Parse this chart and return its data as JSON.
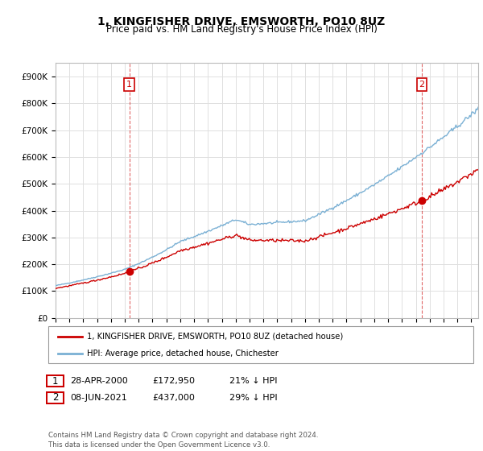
{
  "title": "1, KINGFISHER DRIVE, EMSWORTH, PO10 8UZ",
  "subtitle": "Price paid vs. HM Land Registry's House Price Index (HPI)",
  "ylabel_ticks": [
    "£0",
    "£100K",
    "£200K",
    "£300K",
    "£400K",
    "£500K",
    "£600K",
    "£700K",
    "£800K",
    "£900K"
  ],
  "ytick_values": [
    0,
    100000,
    200000,
    300000,
    400000,
    500000,
    600000,
    700000,
    800000,
    900000
  ],
  "ylim": [
    0,
    950000
  ],
  "xlim_start": 1995.0,
  "xlim_end": 2025.5,
  "point1_x": 2000.32,
  "point1_y": 172950,
  "point1_label": "1",
  "point2_x": 2021.44,
  "point2_y": 437000,
  "point2_label": "2",
  "legend_line1": "1, KINGFISHER DRIVE, EMSWORTH, PO10 8UZ (detached house)",
  "legend_line2": "HPI: Average price, detached house, Chichester",
  "ann1_date": "28-APR-2000",
  "ann1_price": "£172,950",
  "ann1_hpi": "21% ↓ HPI",
  "ann2_date": "08-JUN-2021",
  "ann2_price": "£437,000",
  "ann2_hpi": "29% ↓ HPI",
  "footnote": "Contains HM Land Registry data © Crown copyright and database right 2024.\nThis data is licensed under the Open Government Licence v3.0.",
  "red_color": "#cc0000",
  "blue_color": "#7ab0d4",
  "bg_color": "#ffffff",
  "grid_color": "#e0e0e0",
  "dashed_color": "#cc0000"
}
